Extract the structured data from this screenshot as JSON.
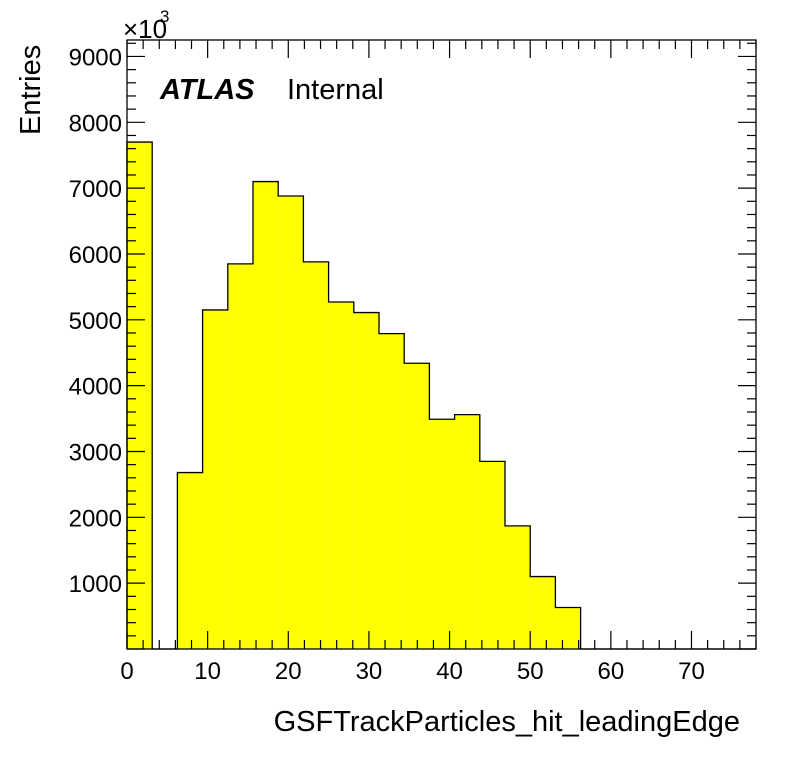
{
  "chart_data": {
    "type": "bar",
    "style": "filled-step-histogram",
    "fill_color": "#ffff00",
    "edge_color": "#000000",
    "xlabel": "GSFTrackParticles_hit_leadingEdge",
    "ylabel": "Entries",
    "y_multiplier_base": "×10",
    "y_multiplier_exponent": "3",
    "label_bold": "ATLAS",
    "label_normal": "Internal",
    "xlim": [
      0,
      78
    ],
    "ylim": [
      0,
      9250
    ],
    "x_ticks": [
      0,
      10,
      20,
      30,
      40,
      50,
      60,
      70
    ],
    "y_ticks": [
      1000,
      2000,
      3000,
      4000,
      5000,
      6000,
      7000,
      8000,
      9000
    ],
    "bin_edges": [
      0,
      3.125,
      6.25,
      9.375,
      12.5,
      15.625,
      18.75,
      21.875,
      25,
      28.125,
      31.25,
      34.375,
      37.5,
      40.625,
      43.75,
      46.875,
      50,
      53.125,
      56.25,
      59.375,
      62.5,
      65.625,
      68.75,
      71.875,
      75,
      78
    ],
    "values": [
      7700,
      0,
      2680,
      5150,
      5850,
      7100,
      6880,
      5880,
      5270,
      5110,
      4790,
      4340,
      3490,
      3560,
      2850,
      1870,
      1100,
      630,
      0,
      0,
      0,
      0,
      0,
      0,
      0
    ]
  }
}
